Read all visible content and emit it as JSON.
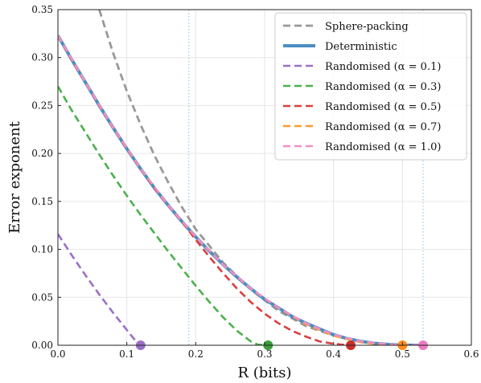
{
  "chart_data": {
    "type": "line",
    "title": "",
    "xlabel": "R (bits)",
    "ylabel": "Error exponent",
    "xlim": [
      0.0,
      0.6
    ],
    "ylim": [
      0.0,
      0.35
    ],
    "x_ticks": [
      "0.0",
      "0.1",
      "0.2",
      "0.3",
      "0.4",
      "0.5",
      "0.6"
    ],
    "y_ticks": [
      "0.00",
      "0.05",
      "0.10",
      "0.15",
      "0.20",
      "0.25",
      "0.30",
      "0.35"
    ],
    "grid": true,
    "legend_position": "top-right",
    "vertical_lines": [
      0.19,
      0.53
    ],
    "series": [
      {
        "name": "Sphere-packing",
        "color": "#999999",
        "style": "dashed",
        "width": 2.8,
        "x": [
          0.06,
          0.08,
          0.1,
          0.12,
          0.14,
          0.16,
          0.18,
          0.2,
          0.24,
          0.28,
          0.32,
          0.36,
          0.4,
          0.44,
          0.48,
          0.51,
          0.53
        ],
        "y": [
          0.35,
          0.305,
          0.265,
          0.23,
          0.198,
          0.17,
          0.144,
          0.121,
          0.086,
          0.058,
          0.036,
          0.02,
          0.01,
          0.004,
          0.001,
          0.0002,
          0.0
        ]
      },
      {
        "name": "Deterministic",
        "color": "#4a8ec2",
        "style": "solid",
        "width": 4,
        "x": [
          0.0,
          0.02,
          0.04,
          0.06,
          0.08,
          0.1,
          0.12,
          0.14,
          0.16,
          0.18,
          0.2,
          0.22,
          0.24,
          0.26,
          0.28,
          0.3,
          0.32,
          0.34,
          0.36,
          0.38,
          0.4,
          0.42,
          0.44,
          0.46,
          0.48,
          0.5,
          0.52,
          0.53
        ],
        "y": [
          0.323,
          0.298,
          0.274,
          0.25,
          0.227,
          0.205,
          0.184,
          0.164,
          0.146,
          0.129,
          0.113,
          0.098,
          0.084,
          0.071,
          0.059,
          0.048,
          0.039,
          0.03,
          0.023,
          0.017,
          0.011,
          0.007,
          0.004,
          0.002,
          0.0008,
          0.0002,
          0.0,
          0.0
        ]
      },
      {
        "name": "Randomised (α = 0.1)",
        "color": "#9b6fc7",
        "style": "dashed",
        "width": 2.6,
        "x": [
          0.0,
          0.02,
          0.04,
          0.06,
          0.08,
          0.1,
          0.11,
          0.12
        ],
        "y": [
          0.116,
          0.094,
          0.073,
          0.053,
          0.034,
          0.016,
          0.007,
          0.0
        ]
      },
      {
        "name": "Randomised (α = 0.3)",
        "color": "#4cb04b",
        "style": "dashed",
        "width": 2.6,
        "x": [
          0.0,
          0.02,
          0.04,
          0.06,
          0.08,
          0.1,
          0.12,
          0.14,
          0.16,
          0.18,
          0.2,
          0.22,
          0.24,
          0.26,
          0.28,
          0.29,
          0.305
        ],
        "y": [
          0.27,
          0.245,
          0.222,
          0.199,
          0.177,
          0.156,
          0.136,
          0.117,
          0.098,
          0.08,
          0.062,
          0.045,
          0.029,
          0.015,
          0.004,
          0.0007,
          0.0
        ]
      },
      {
        "name": "Randomised (α = 0.5)",
        "color": "#d8403f",
        "style": "dashed",
        "width": 2.6,
        "x": [
          0.0,
          0.02,
          0.04,
          0.06,
          0.08,
          0.1,
          0.12,
          0.14,
          0.16,
          0.18,
          0.2,
          0.22,
          0.24,
          0.26,
          0.28,
          0.3,
          0.32,
          0.34,
          0.36,
          0.38,
          0.4,
          0.42,
          0.425
        ],
        "y": [
          0.323,
          0.298,
          0.274,
          0.25,
          0.227,
          0.205,
          0.184,
          0.164,
          0.146,
          0.129,
          0.11,
          0.092,
          0.075,
          0.059,
          0.045,
          0.033,
          0.023,
          0.015,
          0.009,
          0.004,
          0.0015,
          0.0002,
          0.0
        ]
      },
      {
        "name": "Randomised (α = 0.7)",
        "color": "#ff9a2e",
        "style": "dashed",
        "width": 2.6,
        "x": [
          0.0,
          0.04,
          0.08,
          0.12,
          0.16,
          0.2,
          0.24,
          0.28,
          0.32,
          0.36,
          0.4,
          0.44,
          0.47,
          0.5
        ],
        "y": [
          0.323,
          0.274,
          0.227,
          0.184,
          0.146,
          0.113,
          0.084,
          0.059,
          0.039,
          0.022,
          0.01,
          0.003,
          0.0008,
          0.0
        ]
      },
      {
        "name": "Randomised (α = 1.0)",
        "color": "#ef8fc8",
        "style": "dashed",
        "width": 2.6,
        "x": [
          0.0,
          0.04,
          0.08,
          0.12,
          0.16,
          0.2,
          0.24,
          0.28,
          0.32,
          0.36,
          0.4,
          0.44,
          0.48,
          0.5,
          0.53
        ],
        "y": [
          0.323,
          0.274,
          0.227,
          0.184,
          0.146,
          0.113,
          0.084,
          0.059,
          0.039,
          0.023,
          0.011,
          0.004,
          0.0008,
          0.0002,
          0.0
        ]
      }
    ],
    "endpoint_markers": [
      {
        "x": 0.12,
        "y": 0.0,
        "color": "#9b6fc7"
      },
      {
        "x": 0.305,
        "y": 0.0,
        "color": "#3a9e3a"
      },
      {
        "x": 0.425,
        "y": 0.0,
        "color": "#c9302c"
      },
      {
        "x": 0.5,
        "y": 0.0,
        "color": "#ff8c1a"
      },
      {
        "x": 0.53,
        "y": 0.0,
        "color": "#e97cc0"
      }
    ]
  }
}
